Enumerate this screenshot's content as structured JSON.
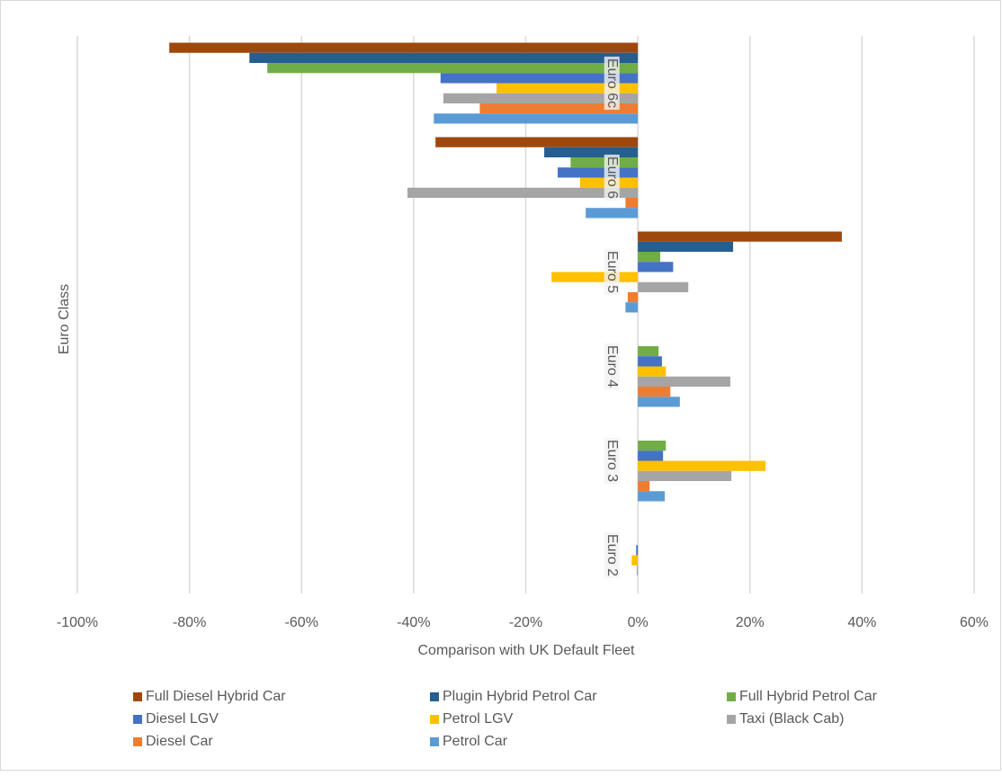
{
  "chart_data": {
    "type": "hbar",
    "x_label": "Comparison with UK Default Fleet",
    "y_label": "Euro Class",
    "categories": [
      "Euro 6c",
      "Euro 6",
      "Euro 5",
      "Euro 4",
      "Euro 3",
      "Euro 2"
    ],
    "series": [
      {
        "name": "Full Diesel Hybrid Car",
        "color": "#9e480e",
        "values": [
          -83.6,
          -36.1,
          36.4,
          null,
          null,
          null
        ]
      },
      {
        "name": "Plugin Hybrid Petrol Car",
        "color": "#255e91",
        "values": [
          -69.3,
          -16.7,
          17.0,
          null,
          null,
          null
        ]
      },
      {
        "name": "Full Hybrid Petrol Car",
        "color": "#70ad47",
        "values": [
          -66.1,
          -12.0,
          4.0,
          3.7,
          5.0,
          null
        ]
      },
      {
        "name": "Diesel LGV",
        "color": "#4472c4",
        "values": [
          -35.2,
          -14.3,
          6.3,
          4.3,
          4.5,
          -0.3
        ]
      },
      {
        "name": "Petrol LGV",
        "color": "#ffc000",
        "values": [
          -25.2,
          -10.3,
          -15.4,
          5.0,
          22.8,
          -1.1
        ]
      },
      {
        "name": "Taxi (Black Cab)",
        "color": "#a5a5a5",
        "values": [
          -34.7,
          -41.1,
          9.0,
          16.5,
          16.7,
          -0.2
        ]
      },
      {
        "name": "Diesel Car",
        "color": "#ed7d31",
        "values": [
          -28.2,
          -2.2,
          -1.8,
          5.8,
          2.1,
          null
        ]
      },
      {
        "name": "Petrol Car",
        "color": "#5b9bd5",
        "values": [
          -36.4,
          -9.3,
          -2.2,
          7.5,
          4.8,
          null
        ]
      }
    ],
    "xlim": [
      -100,
      60
    ],
    "xticks": [
      {
        "value": -100,
        "label": "-100%"
      },
      {
        "value": -80,
        "label": "-80%"
      },
      {
        "value": -60,
        "label": "-60%"
      },
      {
        "value": -40,
        "label": "-40%"
      },
      {
        "value": -20,
        "label": "-20%"
      },
      {
        "value": 0,
        "label": "0%"
      },
      {
        "value": 20,
        "label": "20%"
      },
      {
        "value": 40,
        "label": "40%"
      },
      {
        "value": 60,
        "label": "60%"
      }
    ],
    "grid": true,
    "legend": "bottom"
  }
}
